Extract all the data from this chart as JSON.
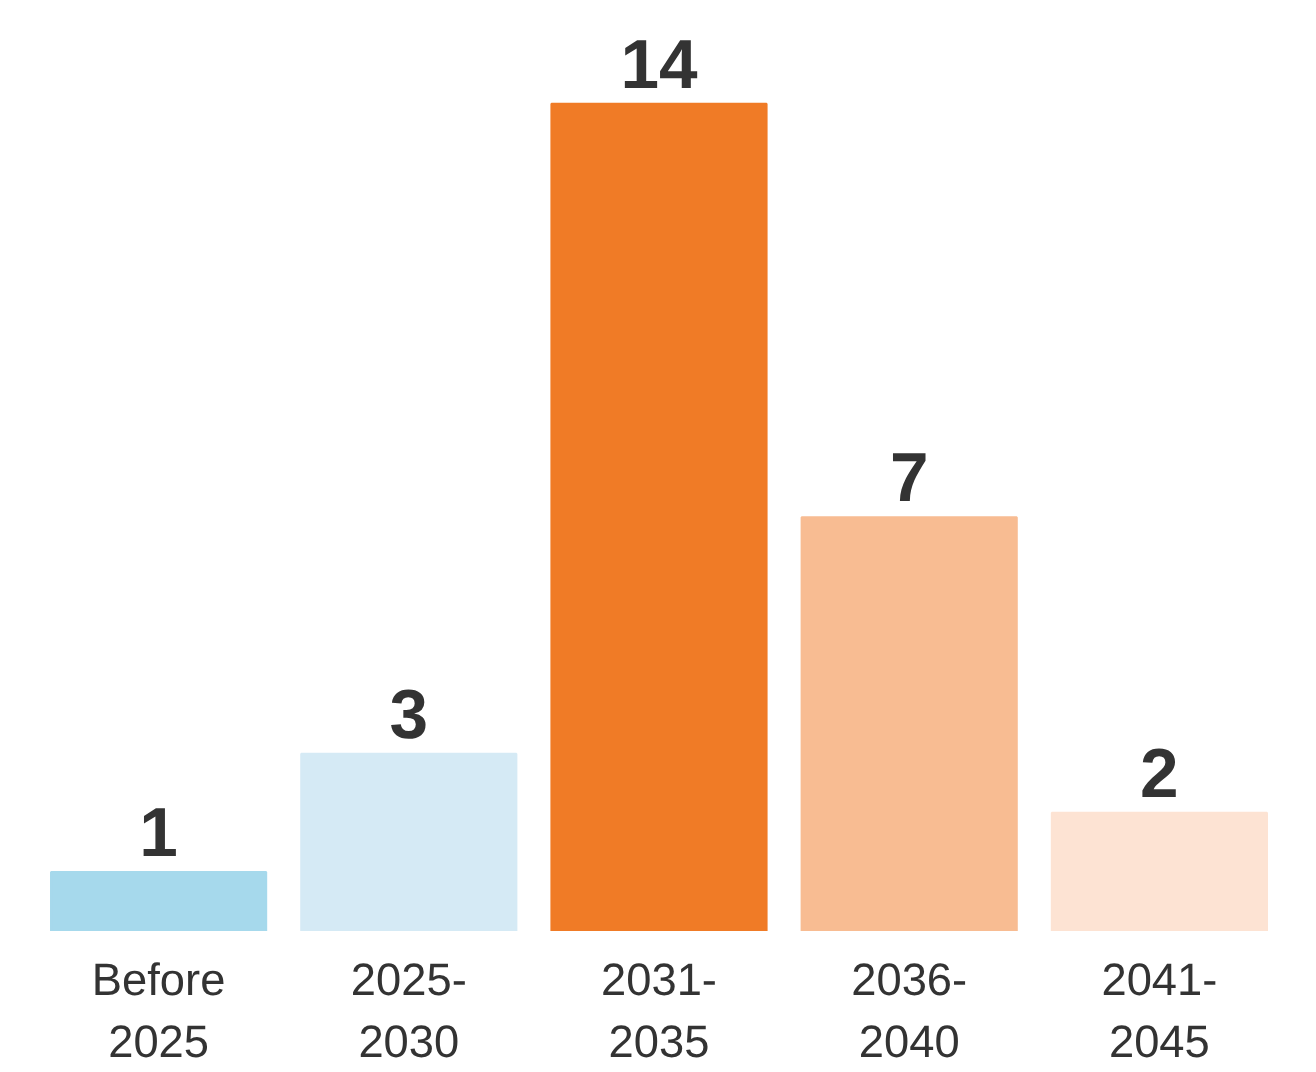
{
  "chart_data": {
    "type": "bar",
    "categories": [
      "Before\n2025",
      "2025-\n2030",
      "2031-\n2035",
      "2036-\n2040",
      "2041-\n2045"
    ],
    "values": [
      1,
      3,
      14,
      7,
      2
    ],
    "colors": [
      "#a6d9ec",
      "#d5eaf5",
      "#f07b26",
      "#f8bc92",
      "#fde3d3"
    ],
    "data_labels": true,
    "grid": false
  }
}
